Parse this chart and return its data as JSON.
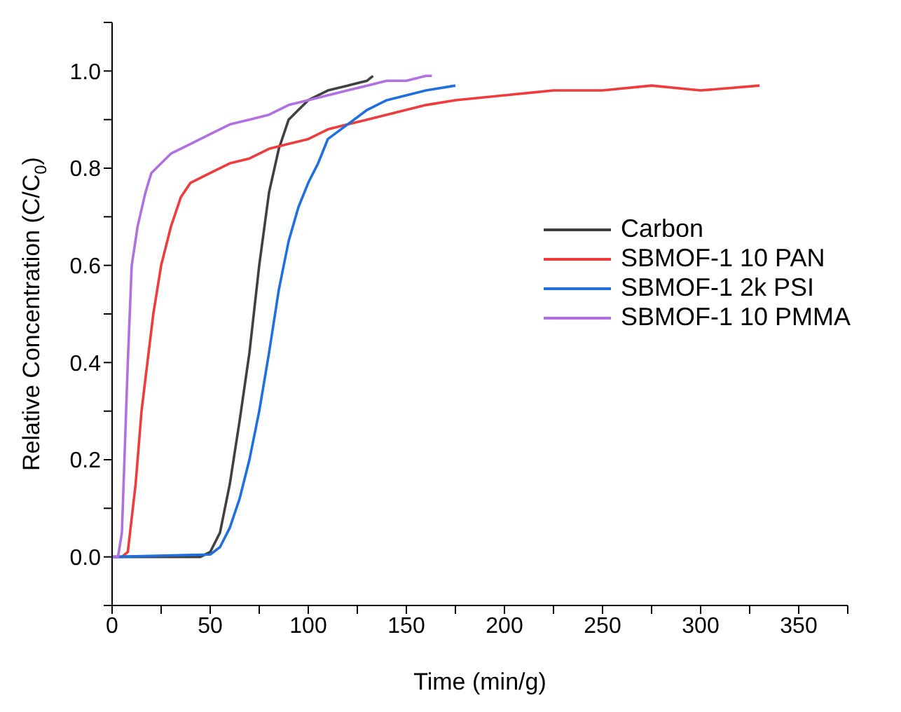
{
  "chart_data": {
    "type": "line",
    "xlabel": "Time (min/g)",
    "ylabel": "Relative Concentration (C/C$_{0}$)",
    "xlim": [
      0,
      375
    ],
    "xticks": [
      0,
      {
        "value": 25,
        "label": null
      },
      50,
      {
        "value": 75,
        "label": null
      },
      100,
      {
        "value": 125,
        "label": null
      },
      150,
      {
        "value": 175,
        "label": null
      },
      200,
      {
        "value": 225,
        "label": null
      },
      250,
      {
        "value": 275,
        "label": null
      },
      300,
      {
        "value": 325,
        "label": null
      },
      350,
      {
        "value": 375,
        "label": null
      }
    ],
    "ylim": [
      -0.1,
      1.1
    ],
    "yticks": [
      {
        "value": -0.1,
        "label": null
      },
      {
        "value": 0,
        "label": "0.0"
      },
      {
        "value": 0.1,
        "label": null
      },
      0.2,
      {
        "value": 0.3,
        "label": null
      },
      0.4,
      {
        "value": 0.5,
        "label": null
      },
      0.6,
      {
        "value": 0.7,
        "label": null
      },
      0.8,
      {
        "value": 0.9,
        "label": null
      },
      {
        "value": 1,
        "label": "1.0"
      },
      {
        "value": 1.1,
        "label": null
      }
    ],
    "grid": false,
    "legend": "right",
    "marker": "none",
    "line_style": "solid",
    "series": [
      {
        "name": "Carbon",
        "color": "#404040",
        "x": [
          0,
          45,
          50,
          55,
          60,
          65,
          70,
          75,
          80,
          85,
          90,
          95,
          100,
          110,
          120,
          130,
          133
        ],
        "values": [
          0,
          0,
          0.01,
          0.05,
          0.15,
          0.28,
          0.42,
          0.6,
          0.75,
          0.84,
          0.9,
          0.92,
          0.94,
          0.96,
          0.97,
          0.98,
          0.99
        ]
      },
      {
        "name": "SBMOF-1 10 PAN",
        "color": "#ef3b3b",
        "x": [
          5,
          8,
          12,
          15,
          18,
          21,
          25,
          30,
          35,
          40,
          50,
          60,
          70,
          80,
          90,
          100,
          110,
          120,
          130,
          140,
          150,
          160,
          175,
          200,
          225,
          250,
          275,
          300,
          330
        ],
        "values": [
          0,
          0.01,
          0.15,
          0.3,
          0.4,
          0.5,
          0.6,
          0.68,
          0.74,
          0.77,
          0.79,
          0.81,
          0.82,
          0.84,
          0.85,
          0.86,
          0.88,
          0.89,
          0.9,
          0.91,
          0.92,
          0.93,
          0.94,
          0.95,
          0.96,
          0.96,
          0.97,
          0.96,
          0.97
        ]
      },
      {
        "name": "SBMOF-1 2k PSI",
        "color": "#1f6fdf",
        "x": [
          0,
          50,
          55,
          60,
          65,
          70,
          75,
          80,
          85,
          90,
          95,
          100,
          105,
          108,
          110,
          120,
          130,
          140,
          150,
          160,
          175
        ],
        "values": [
          0,
          0.005,
          0.02,
          0.06,
          0.12,
          0.2,
          0.3,
          0.42,
          0.55,
          0.65,
          0.72,
          0.77,
          0.81,
          0.84,
          0.86,
          0.89,
          0.92,
          0.94,
          0.95,
          0.96,
          0.97
        ]
      },
      {
        "name": "SBMOF-1 10 PMMA",
        "color": "#b070e0",
        "x": [
          0,
          3,
          5,
          8,
          10,
          13,
          17,
          20,
          25,
          30,
          40,
          50,
          60,
          70,
          80,
          90,
          100,
          110,
          120,
          130,
          140,
          150,
          160,
          163
        ],
        "values": [
          0,
          0,
          0.05,
          0.4,
          0.6,
          0.68,
          0.75,
          0.79,
          0.81,
          0.83,
          0.85,
          0.87,
          0.89,
          0.9,
          0.91,
          0.93,
          0.94,
          0.95,
          0.96,
          0.97,
          0.98,
          0.98,
          0.99,
          0.99
        ]
      }
    ]
  }
}
